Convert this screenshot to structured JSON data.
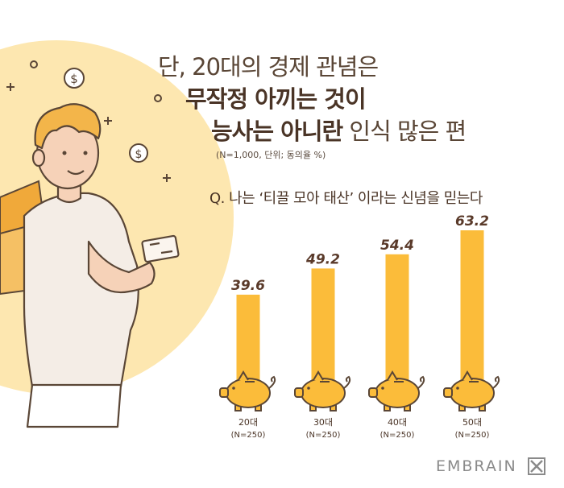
{
  "title": {
    "line1": "단, 20대의 경제 관념은",
    "line2": "무작정 아끼는 것이",
    "line3_bold": "능사는 아니란",
    "line3_rest": " 인식 많은 편"
  },
  "note": "(N=1,000, 단위; 동의율 %)",
  "question": "Q. 나는 ‘티끌 모아 태산’ 이라는 신념을 믿는다",
  "brand": "EMBRAIN",
  "colors": {
    "bar": "#fbbc3a",
    "accent_bg": "#fde7b0",
    "text": "#4a3426"
  },
  "chart_data": {
    "type": "bar",
    "categories": [
      "20대",
      "30대",
      "40대",
      "50대"
    ],
    "sample_sizes": [
      "(N=250)",
      "(N=250)",
      "(N=250)",
      "(N=250)"
    ],
    "values": [
      39.6,
      49.2,
      54.4,
      63.2
    ],
    "value_labels": [
      "39.6",
      "49.2",
      "54.4",
      "63.2"
    ],
    "ylim": [
      0,
      70
    ],
    "grid": false,
    "bar_base_icon": "piggy-bank-icon"
  }
}
